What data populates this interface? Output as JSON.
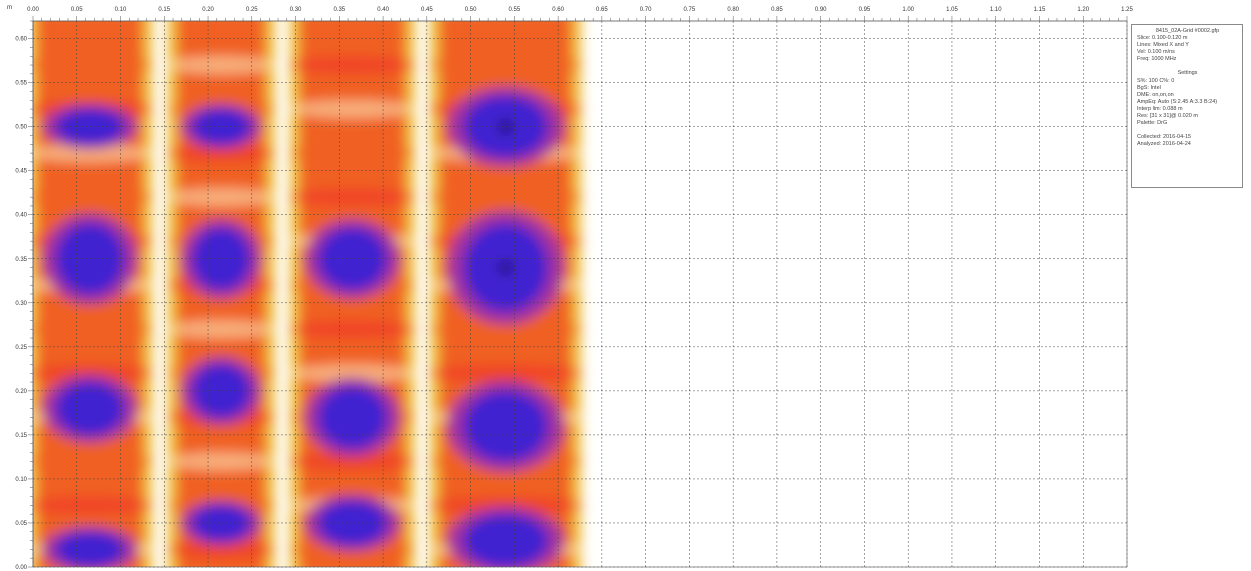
{
  "axes": {
    "unit_label": "m",
    "x_ticks": [
      "0.00",
      "0.05",
      "0.10",
      "0.15",
      "0.20",
      "0.25",
      "0.30",
      "0.35",
      "0.40",
      "0.45",
      "0.50",
      "0.55",
      "0.60",
      "0.65",
      "0.70",
      "0.75",
      "0.80",
      "0.85",
      "0.90",
      "0.95",
      "1.00",
      "1.05",
      "1.10",
      "1.15",
      "1.20",
      "1.25"
    ],
    "y_ticks": [
      "0.60",
      "0.55",
      "0.50",
      "0.45",
      "0.40",
      "0.35",
      "0.30",
      "0.25",
      "0.20",
      "0.15",
      "0.10",
      "0.05",
      "0.00"
    ]
  },
  "colors": {
    "grid": "#444444",
    "palette": [
      "#ffffff",
      "#fff0c8",
      "#f0c040",
      "#f06020",
      "#f03030",
      "#a030a0",
      "#4020d0",
      "#101030"
    ]
  },
  "heatmap": {
    "x_range": [
      0.0,
      0.62
    ],
    "y_range": [
      0.0,
      0.62
    ],
    "description_levels": "0 = background (white) to 7 = strongest (black)",
    "scan_lines": [
      {
        "x0": 0.0,
        "x1": 0.13,
        "anomalies": [
          {
            "y": 0.35,
            "r": 0.04,
            "level": 6
          },
          {
            "y": 0.5,
            "r": 0.02,
            "level": 5
          },
          {
            "y": 0.18,
            "r": 0.03,
            "level": 5
          },
          {
            "y": 0.02,
            "r": 0.02,
            "level": 6
          }
        ]
      },
      {
        "x0": 0.16,
        "x1": 0.27,
        "anomalies": [
          {
            "y": 0.35,
            "r": 0.035,
            "level": 6
          },
          {
            "y": 0.2,
            "r": 0.03,
            "level": 6
          },
          {
            "y": 0.5,
            "r": 0.02,
            "level": 5
          },
          {
            "y": 0.05,
            "r": 0.02,
            "level": 5
          }
        ]
      },
      {
        "x0": 0.3,
        "x1": 0.43,
        "anomalies": [
          {
            "y": 0.35,
            "r": 0.035,
            "level": 6
          },
          {
            "y": 0.17,
            "r": 0.035,
            "level": 6
          },
          {
            "y": 0.05,
            "r": 0.025,
            "level": 5
          }
        ]
      },
      {
        "x0": 0.46,
        "x1": 0.62,
        "anomalies": [
          {
            "y": 0.5,
            "r": 0.035,
            "level": 7
          },
          {
            "y": 0.34,
            "r": 0.05,
            "level": 7
          },
          {
            "y": 0.16,
            "r": 0.04,
            "level": 6
          },
          {
            "y": 0.03,
            "r": 0.03,
            "level": 6
          }
        ]
      }
    ]
  },
  "info": {
    "title": "8415_02A-Grid #0002.gfp",
    "lines_top": [
      "Slice: 0.100-0.120 m",
      "Lines: Mixed X and Y",
      "Vel: 0.100 m/ns",
      "Freq: 1000 MHz"
    ],
    "settings_heading": "Settings",
    "lines_settings": [
      "S%: 100  C%: 0",
      "BgS: Intel",
      "DME: on,on,on",
      "AmpEq: Auto (S:2.45 A:3.3 B:24)",
      "Interp lim: 0.088 m",
      "Res: [31 x 31]@ 0.020 m",
      "Palette: DrG"
    ],
    "lines_bottom": [
      "Collected: 2016-04-15",
      "Analyzed: 2016-04-24"
    ]
  }
}
